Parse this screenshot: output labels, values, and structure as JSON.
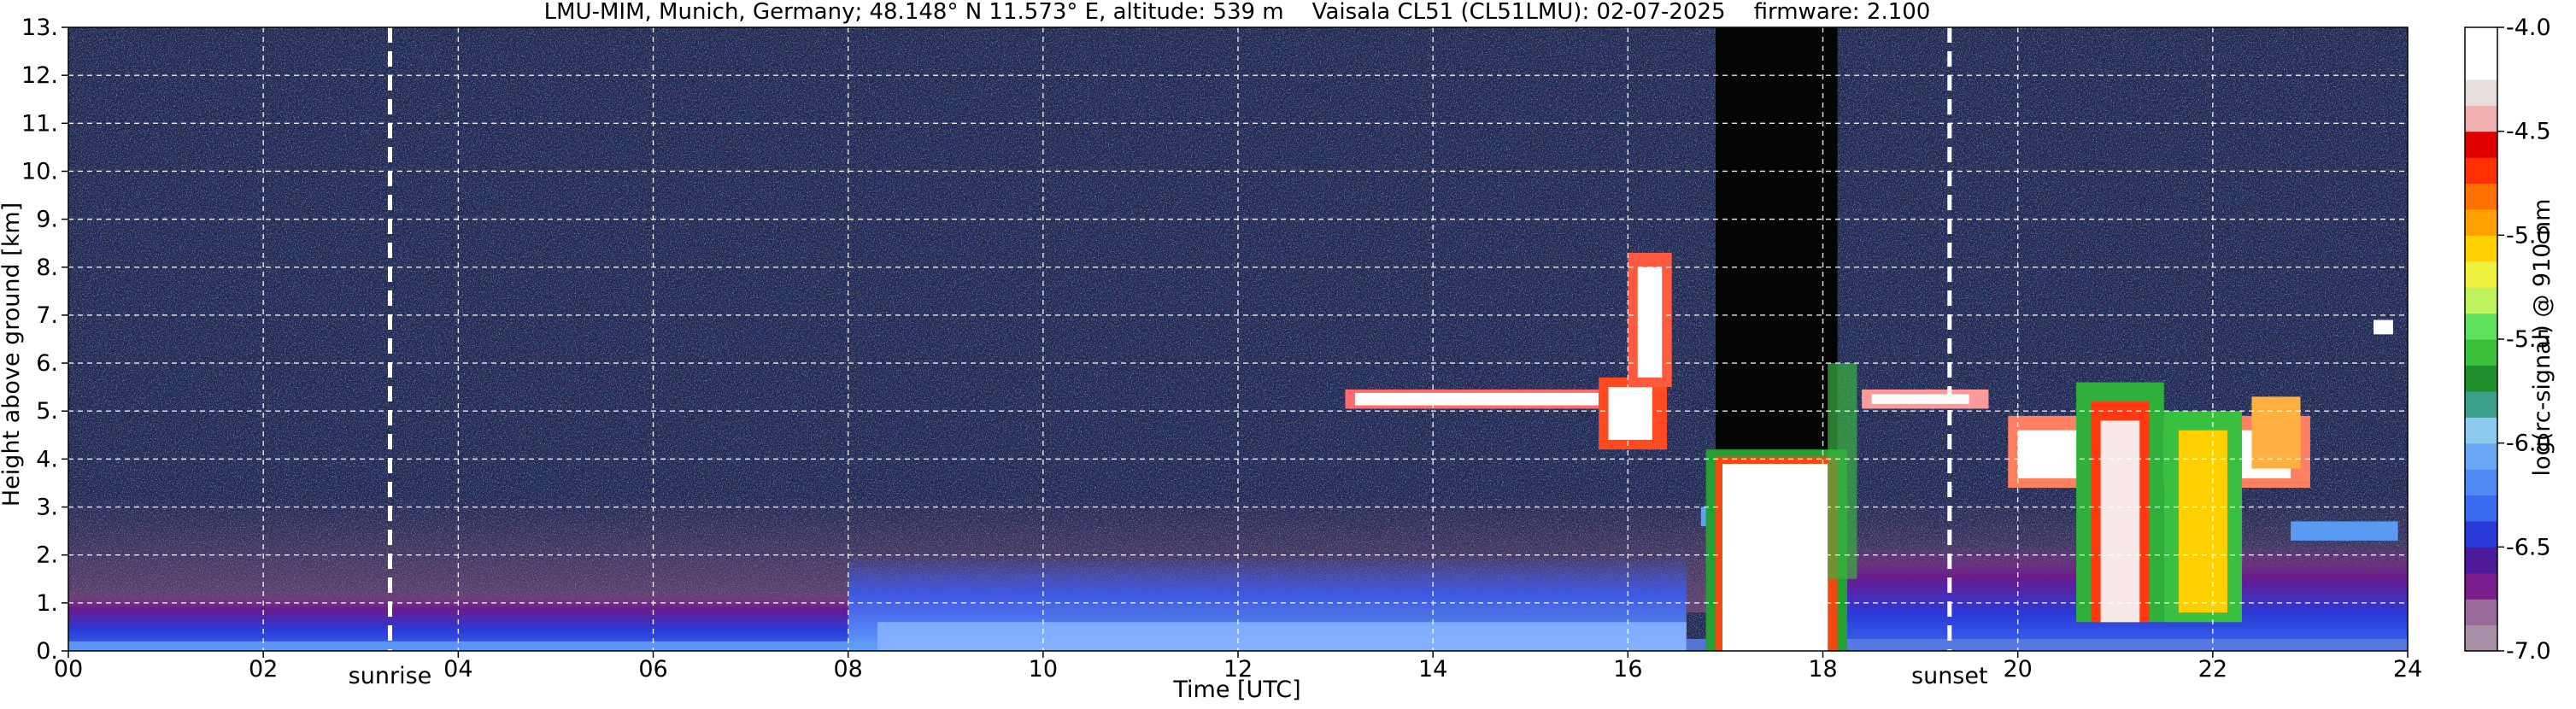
{
  "title": "LMU-MIM, Munich, Germany; 48.148° N 11.573° E, altitude: 539 m    Vaisala CL51 (CL51LMU): 02-07-2025    firmware: 2.100",
  "chart_data": {
    "type": "heatmap",
    "title": "LMU-MIM, Munich, Germany; 48.148° N 11.573° E, altitude: 539 m    Vaisala CL51 (CL51LMU): 02-07-2025    firmware: 2.100",
    "xlabel": "Time [UTC]",
    "ylabel": "Height above ground [km]",
    "xlim": [
      0,
      24
    ],
    "ylim": [
      0,
      13
    ],
    "x_ticks": [
      0,
      2,
      4,
      6,
      8,
      10,
      12,
      14,
      16,
      18,
      20,
      22,
      24
    ],
    "x_tick_labels": [
      "00",
      "02",
      "04",
      "06",
      "08",
      "10",
      "12",
      "14",
      "16",
      "18",
      "20",
      "22",
      "24"
    ],
    "y_ticks": [
      0,
      1,
      2,
      3,
      4,
      5,
      6,
      7,
      8,
      9,
      10,
      11,
      12,
      13
    ],
    "y_tick_labels": [
      "0.",
      "1.",
      "2.",
      "3.",
      "4.",
      "5.",
      "6.",
      "7.",
      "8.",
      "9.",
      "10.",
      "11.",
      "12.",
      "13."
    ],
    "grid": true,
    "vertical_markers": [
      {
        "label": "sunrise",
        "x": 3.3
      },
      {
        "label": "sunset",
        "x": 19.3
      }
    ],
    "colorbar": {
      "label": "log(rc-signal) @ 910 nm",
      "range": [
        -7.0,
        -4.0
      ],
      "ticks": [
        -4.0,
        -4.5,
        -5.0,
        -5.5,
        -6.0,
        -6.5,
        -7.0
      ],
      "tick_labels": [
        "-4.0",
        "-4.5",
        "-5.0",
        "-5.5",
        "-6.0",
        "-6.5",
        "-7.0"
      ],
      "colors_bottom_to_top": [
        "#a890a8",
        "#9a6a9a",
        "#7a1c8c",
        "#4c1a9a",
        "#2a3ad8",
        "#3a6aee",
        "#4f8af5",
        "#6aa8f5",
        "#8ccaf0",
        "#3aa08a",
        "#1f8f2a",
        "#3ac03a",
        "#5fe05f",
        "#bff25f",
        "#f0f040",
        "#ffd000",
        "#ffa000",
        "#ff7000",
        "#ff3000",
        "#e00000",
        "#f0b0b0",
        "#e8dede",
        "#ffffff",
        "#ffffff"
      ]
    },
    "features": [
      {
        "name": "boundary layer aerosol",
        "x_range": [
          0,
          24
        ],
        "height_km": [
          0,
          1.2
        ]
      },
      {
        "name": "cloud layer",
        "x_range": [
          13.1,
          16.0
        ],
        "height_km": [
          5.1,
          5.4
        ]
      },
      {
        "name": "thick cloud / precipitation",
        "x_range": [
          16.7,
          18.3
        ],
        "height_km": [
          0,
          4.3
        ]
      },
      {
        "name": "signal attenuated above cloud",
        "x_range": [
          16.9,
          18.1
        ],
        "height_km": [
          4.3,
          13
        ]
      },
      {
        "name": "convective cloud",
        "x_range": [
          20.6,
          22.8
        ],
        "height_km": [
          0.5,
          5.6
        ]
      }
    ]
  }
}
